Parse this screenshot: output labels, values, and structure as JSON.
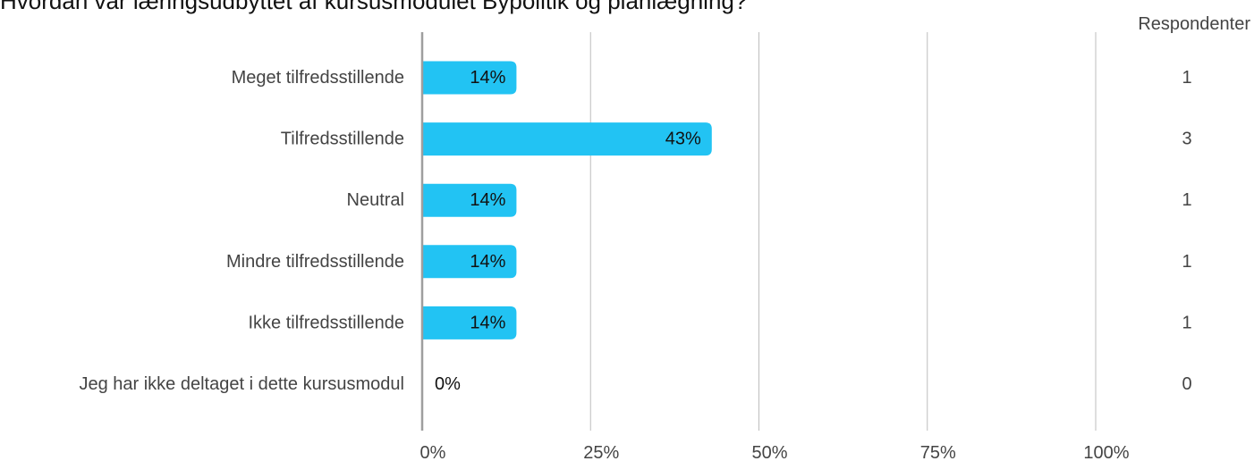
{
  "chart_data": {
    "type": "bar",
    "orientation": "horizontal",
    "title": "Hvordan var læringsudbyttet af kursusmodulet Bypolitik og planlægning?",
    "categories": [
      "Meget tilfredsstillende",
      "Tilfredsstillende",
      "Neutral",
      "Mindre tilfredsstillende",
      "Ikke tilfredsstillende",
      "Jeg har ikke deltaget i dette kursusmodul"
    ],
    "values": [
      14,
      43,
      14,
      14,
      14,
      0
    ],
    "data_labels": [
      "14%",
      "43%",
      "14%",
      "14%",
      "14%",
      "0%"
    ],
    "respondents_header": "Respondenter",
    "respondents": [
      "1",
      "3",
      "1",
      "1",
      "1",
      "0"
    ],
    "xlim": [
      0,
      100
    ],
    "ticks": [
      0,
      25,
      50,
      75,
      100
    ],
    "tick_labels": [
      "0%",
      "25%",
      "50%",
      "75%",
      "100%"
    ],
    "grid": true,
    "bar_color": "#22c3f3",
    "grid_color": "#bdbdbd",
    "axis_color": "#9e9e9e"
  }
}
